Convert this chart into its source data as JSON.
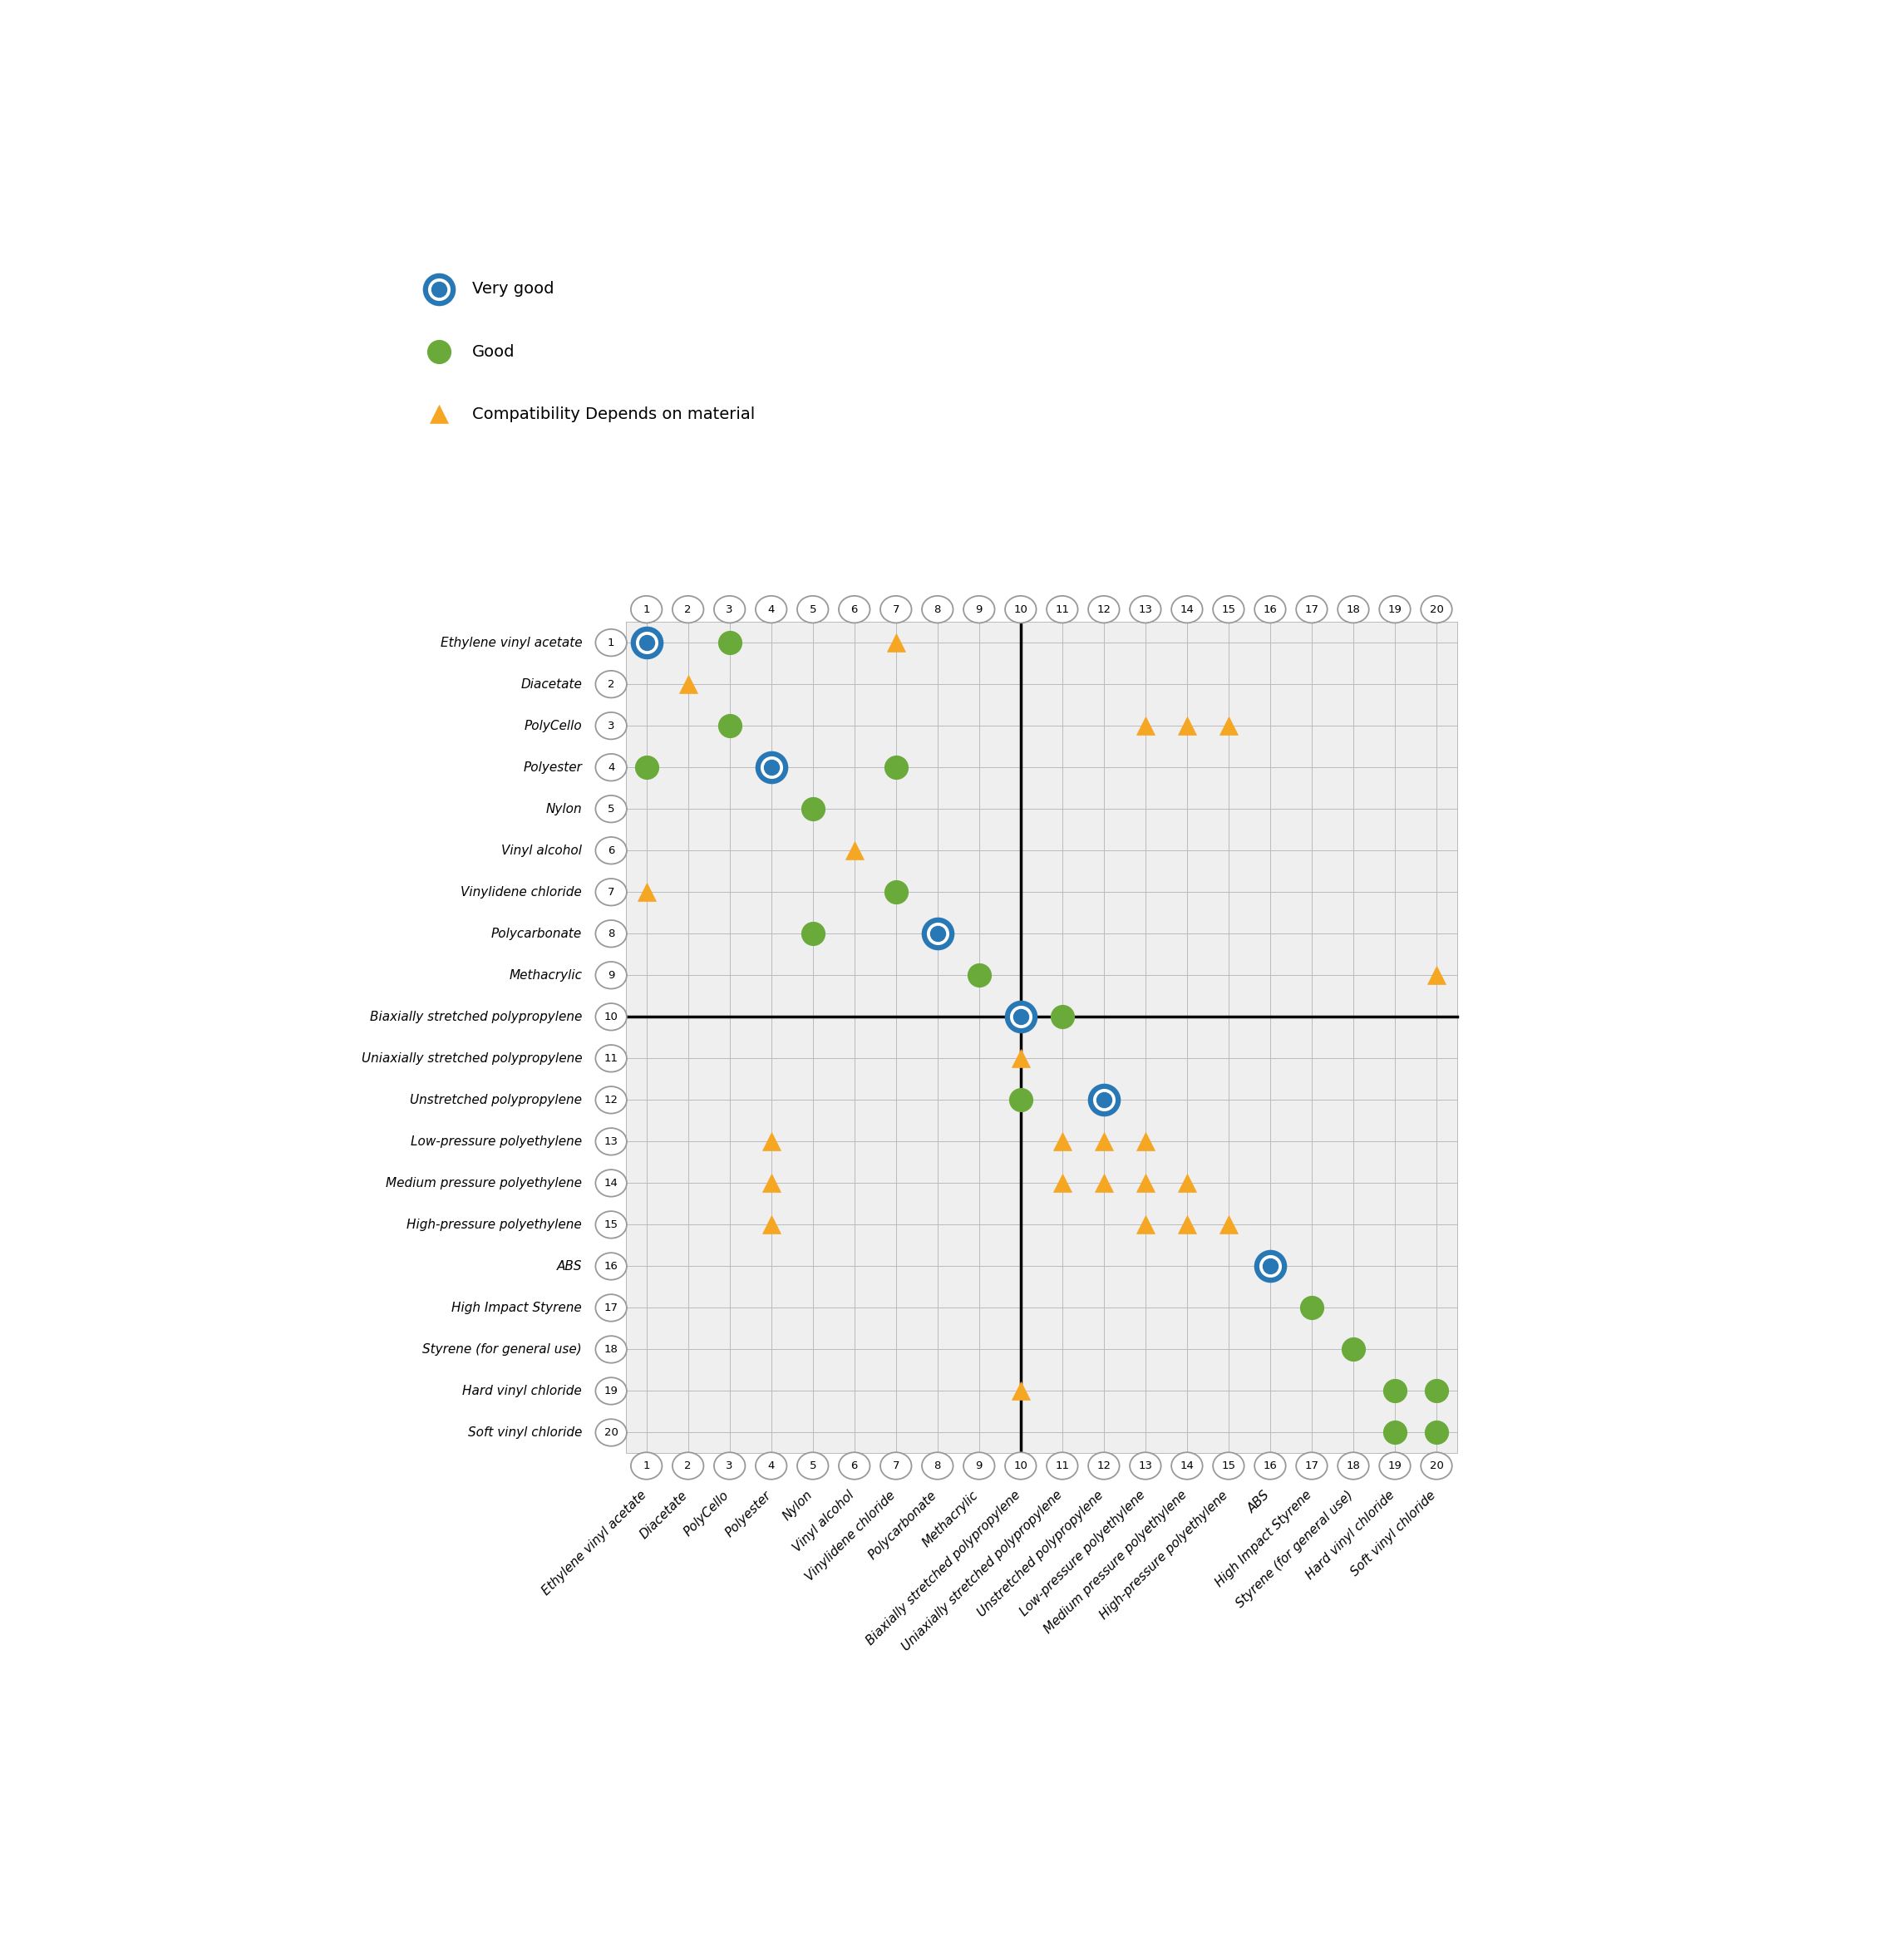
{
  "materials": [
    "Ethylene vinyl acetate",
    "Diacetate",
    "PolyCello",
    "Polyester",
    "Nylon",
    "Vinyl alcohol",
    "Vinylidene chloride",
    "Polycarbonate",
    "Methacrylic",
    "Biaxially stretched polypropylene",
    "Uniaxially stretched polypropylene",
    "Unstretched polypropylene",
    "Low-pressure polyethylene",
    "Medium pressure polyethylene",
    "High-pressure polyethylene",
    "ABS",
    "High Impact Styrene",
    "Styrene (for general use)",
    "Hard vinyl chloride",
    "Soft vinyl chloride"
  ],
  "symbols": [
    {
      "row": 1,
      "col": 1,
      "type": "very_good"
    },
    {
      "row": 1,
      "col": 3,
      "type": "good"
    },
    {
      "row": 1,
      "col": 7,
      "type": "triangle"
    },
    {
      "row": 2,
      "col": 2,
      "type": "triangle"
    },
    {
      "row": 3,
      "col": 3,
      "type": "good"
    },
    {
      "row": 3,
      "col": 13,
      "type": "triangle"
    },
    {
      "row": 3,
      "col": 14,
      "type": "triangle"
    },
    {
      "row": 3,
      "col": 15,
      "type": "triangle"
    },
    {
      "row": 4,
      "col": 1,
      "type": "good"
    },
    {
      "row": 4,
      "col": 4,
      "type": "very_good"
    },
    {
      "row": 4,
      "col": 7,
      "type": "good"
    },
    {
      "row": 5,
      "col": 5,
      "type": "good"
    },
    {
      "row": 6,
      "col": 6,
      "type": "triangle"
    },
    {
      "row": 7,
      "col": 1,
      "type": "triangle"
    },
    {
      "row": 7,
      "col": 7,
      "type": "good"
    },
    {
      "row": 8,
      "col": 5,
      "type": "good"
    },
    {
      "row": 8,
      "col": 8,
      "type": "very_good"
    },
    {
      "row": 9,
      "col": 9,
      "type": "good"
    },
    {
      "row": 9,
      "col": 20,
      "type": "triangle"
    },
    {
      "row": 10,
      "col": 10,
      "type": "very_good"
    },
    {
      "row": 10,
      "col": 11,
      "type": "good"
    },
    {
      "row": 11,
      "col": 10,
      "type": "triangle"
    },
    {
      "row": 12,
      "col": 10,
      "type": "good"
    },
    {
      "row": 12,
      "col": 12,
      "type": "very_good"
    },
    {
      "row": 13,
      "col": 4,
      "type": "triangle"
    },
    {
      "row": 13,
      "col": 11,
      "type": "triangle"
    },
    {
      "row": 13,
      "col": 12,
      "type": "triangle"
    },
    {
      "row": 13,
      "col": 13,
      "type": "triangle"
    },
    {
      "row": 14,
      "col": 4,
      "type": "triangle"
    },
    {
      "row": 14,
      "col": 11,
      "type": "triangle"
    },
    {
      "row": 14,
      "col": 12,
      "type": "triangle"
    },
    {
      "row": 14,
      "col": 13,
      "type": "triangle"
    },
    {
      "row": 14,
      "col": 14,
      "type": "triangle"
    },
    {
      "row": 15,
      "col": 4,
      "type": "triangle"
    },
    {
      "row": 15,
      "col": 13,
      "type": "triangle"
    },
    {
      "row": 15,
      "col": 14,
      "type": "triangle"
    },
    {
      "row": 15,
      "col": 15,
      "type": "triangle"
    },
    {
      "row": 16,
      "col": 16,
      "type": "very_good"
    },
    {
      "row": 17,
      "col": 17,
      "type": "good"
    },
    {
      "row": 18,
      "col": 18,
      "type": "good"
    },
    {
      "row": 19,
      "col": 10,
      "type": "triangle"
    },
    {
      "row": 19,
      "col": 19,
      "type": "good"
    },
    {
      "row": 19,
      "col": 20,
      "type": "good"
    },
    {
      "row": 20,
      "col": 19,
      "type": "good"
    },
    {
      "row": 20,
      "col": 20,
      "type": "good"
    }
  ],
  "very_good_color": "#2878b5",
  "good_color": "#6aaa3a",
  "triangle_color": "#f5a623",
  "grid_color": "#bbbbbb",
  "bold_line_color": "#000000",
  "bold_line_at": 10,
  "cell_bg_color": "#efefef",
  "white": "#ffffff",
  "ellipse_edge_color": "#999999",
  "label_fontsize": 11,
  "num_fontsize": 9.5,
  "legend_fontsize": 14,
  "marker_very_good_outer": 24,
  "marker_very_good_inner": 13,
  "marker_good": 20,
  "marker_triangle": 16
}
